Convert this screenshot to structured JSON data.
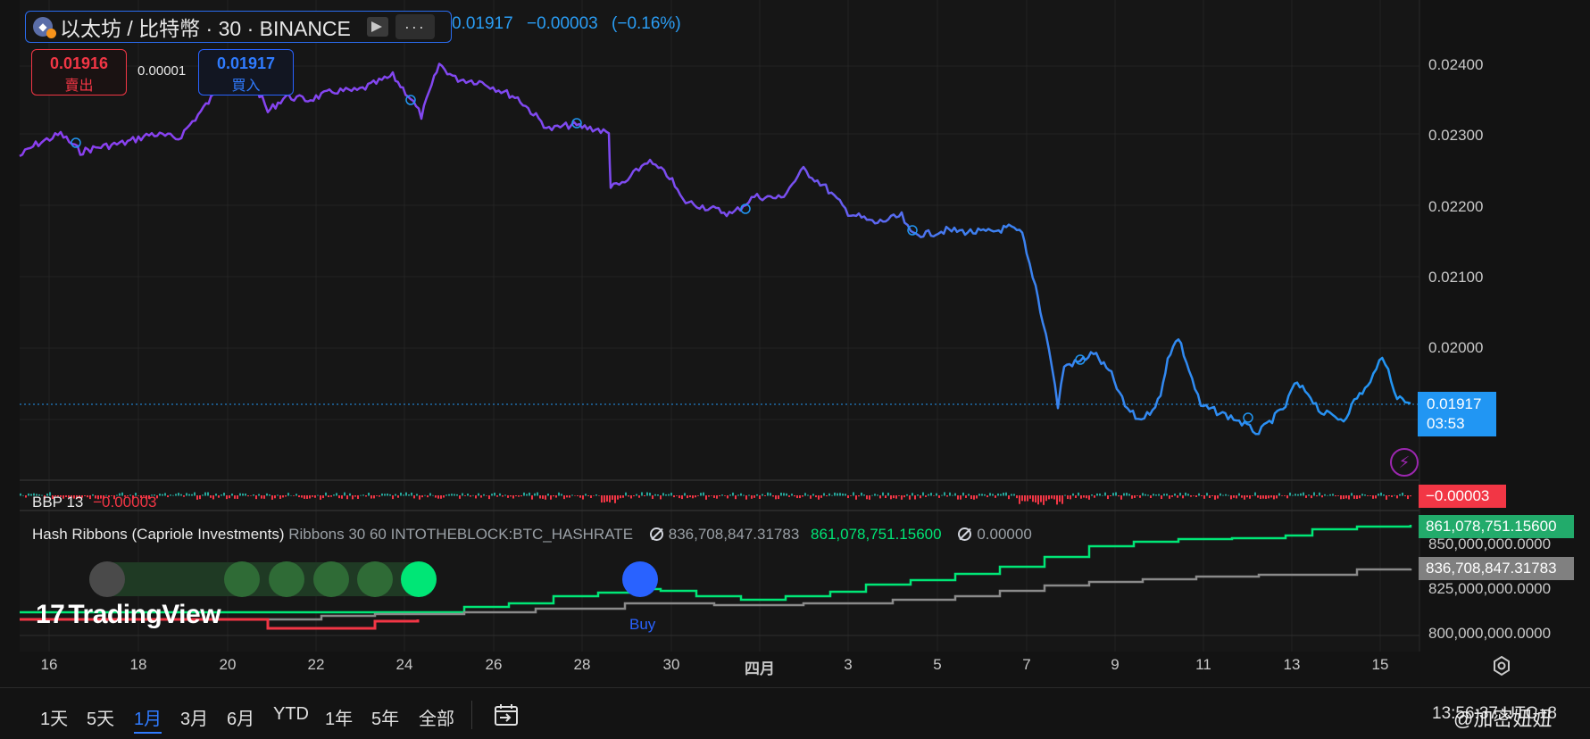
{
  "header": {
    "symbol_title": "以太坊 / 比特幣 · 30 · BINANCE",
    "more_icon": "···",
    "quote_price": "0.01917",
    "quote_change": "−0.00003",
    "quote_change_pct": "(−0.16%)"
  },
  "trade": {
    "sell_price": "0.01916",
    "sell_label": "賣出",
    "spread": "0.00001",
    "buy_price": "0.01917",
    "buy_label": "買入"
  },
  "price_axis": {
    "ticks": [
      "0.02400",
      "0.02300",
      "0.02200",
      "0.02100",
      "0.02000"
    ],
    "last_price": "0.01917",
    "countdown": "03:53"
  },
  "bbp": {
    "name": "BBP",
    "param": "13",
    "value": "−0.00003",
    "tag": "−0.00003"
  },
  "hash_ribbons": {
    "name": "Hash Ribbons (Capriole Investments)",
    "params": "Ribbons 30 60 INTOTHEBLOCK:BTC_HASHRATE",
    "val1": "836,708,847.31783",
    "val2": "861,078,751.15600",
    "val3": "0.00000",
    "tag_fast": "861,078,751.15600",
    "tag_slow": "836,708,847.31783",
    "axis": [
      "850,000,000.0000",
      "825,000,000.0000",
      "800,000,000.0000"
    ],
    "buy_label": "Buy"
  },
  "branding": {
    "logo_text": "TradingView"
  },
  "time_axis": [
    "16",
    "18",
    "20",
    "22",
    "24",
    "26",
    "28",
    "30",
    "四月",
    "3",
    "5",
    "7",
    "9",
    "11",
    "13",
    "15"
  ],
  "toolbar": {
    "ranges": [
      "1天",
      "5天",
      "1月",
      "3月",
      "6月",
      "YTD",
      "1年",
      "5年",
      "全部"
    ],
    "active_range": "1月",
    "clock": "13:56:37 UTC+8"
  },
  "watermark": "@加密妞妞",
  "colors": {
    "purple": "#8b3ff0",
    "blue": "#2196f3",
    "green": "#00e676",
    "gray": "#8a8a8a",
    "red": "#f23645"
  }
}
